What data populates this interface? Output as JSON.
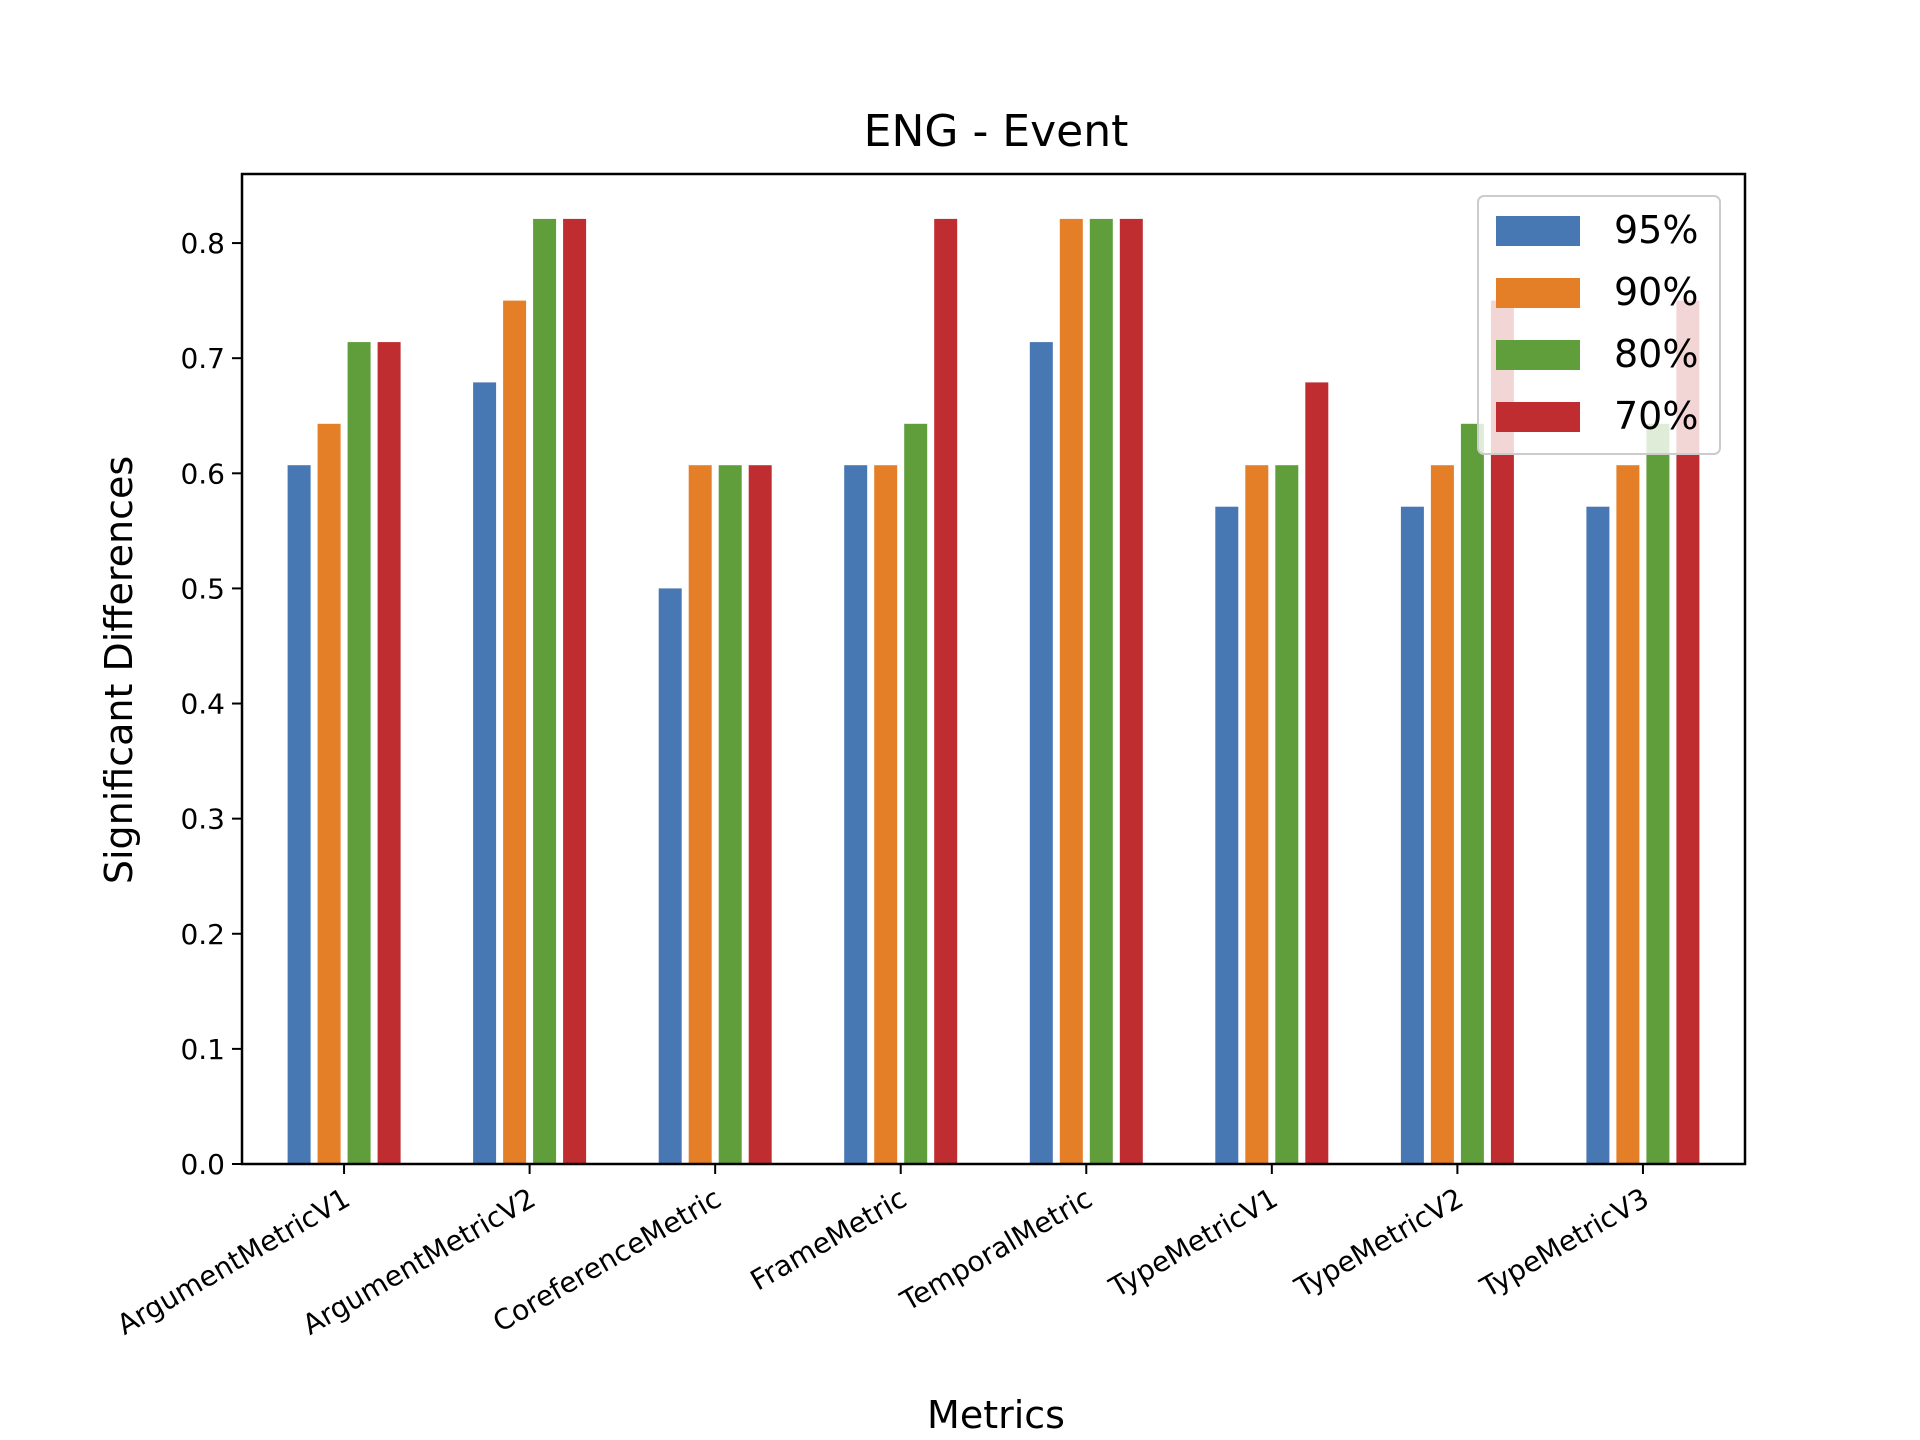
{
  "chart_data": {
    "type": "bar",
    "title": "ENG - Event",
    "xlabel": "Metrics",
    "ylabel": "Significant Differences",
    "categories": [
      "ArgumentMetricV1",
      "ArgumentMetricV2",
      "CoreferenceMetric",
      "FrameMetric",
      "TemporalMetric",
      "TypeMetricV1",
      "TypeMetricV2",
      "TypeMetricV3"
    ],
    "series": [
      {
        "name": "95%",
        "color": "#4878b4",
        "values": [
          0.607,
          0.679,
          0.5,
          0.607,
          0.714,
          0.571,
          0.571,
          0.571
        ]
      },
      {
        "name": "90%",
        "color": "#e57f27",
        "values": [
          0.643,
          0.75,
          0.607,
          0.607,
          0.821,
          0.607,
          0.607,
          0.607
        ]
      },
      {
        "name": "80%",
        "color": "#5f9e3a",
        "values": [
          0.714,
          0.821,
          0.607,
          0.643,
          0.821,
          0.607,
          0.643,
          0.643
        ]
      },
      {
        "name": "70%",
        "color": "#bf2d30",
        "values": [
          0.714,
          0.821,
          0.607,
          0.821,
          0.821,
          0.679,
          0.75,
          0.75
        ]
      }
    ],
    "ylim": [
      0,
      0.86
    ],
    "yticks": [
      0.0,
      0.1,
      0.2,
      0.3,
      0.4,
      0.5,
      0.6,
      0.7,
      0.8
    ],
    "ytick_labels": [
      "0.0",
      "0.1",
      "0.2",
      "0.3",
      "0.4",
      "0.5",
      "0.6",
      "0.7",
      "0.8"
    ],
    "legend_position": "top-right",
    "grid": false
  }
}
